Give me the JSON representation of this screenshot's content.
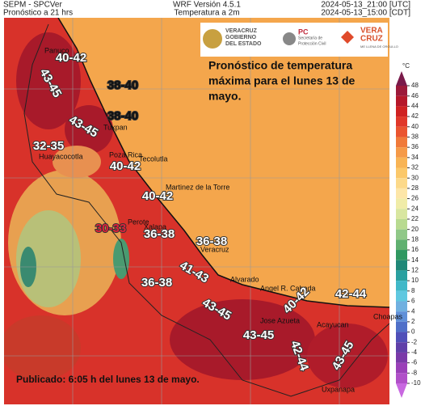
{
  "header": {
    "left_lines": [
      "SEPM - SPCVer",
      "Pronóstico a 21 hrs"
    ],
    "center_lines": [
      "WRF Versión 4.5.1",
      "Temperatura a 2m"
    ],
    "right_lines": [
      "2024-05-13_21:00 [UTC]",
      "2024-05-13_15:00 [CDT]"
    ]
  },
  "logos": {
    "veracruz": [
      "VERACRUZ",
      "GOBIERNO",
      "DEL ESTADO"
    ],
    "pc": [
      "PC",
      "Secretaría de",
      "Protección Civil"
    ],
    "brand": [
      "VERA",
      "CRUZ",
      "ME LLENA DE ORGULLO"
    ]
  },
  "title_lines": [
    "Pronóstico de temperatura",
    "máxima para el lunes 13 de",
    "mayo."
  ],
  "footer": "Publicado: 6:05 h del lunes 13 de mayo.",
  "colorbar": {
    "unit": "°C",
    "ticks": [
      48,
      46,
      44,
      42,
      40,
      38,
      36,
      34,
      32,
      30,
      28,
      26,
      24,
      22,
      20,
      18,
      16,
      14,
      12,
      10,
      8,
      6,
      4,
      2,
      0,
      -2,
      -4,
      -6,
      -8,
      -10
    ],
    "colors": [
      "#9c1a3a",
      "#b5182a",
      "#cf2222",
      "#e0382a",
      "#ea5530",
      "#f07a3a",
      "#f59a48",
      "#f8b455",
      "#fbc86a",
      "#fcd98a",
      "#fde6a8",
      "#f0eca8",
      "#d8e6a0",
      "#b8da90",
      "#90c888",
      "#60b070",
      "#309860",
      "#208878",
      "#2aa0a0",
      "#40b8c8",
      "#60c8e0",
      "#70b0e0",
      "#6090d8",
      "#5070c8",
      "#5050b8",
      "#6040a8",
      "#7a3aa8",
      "#9a40b8",
      "#b050c8"
    ]
  },
  "places": [
    "Panuco",
    "Tuxpan",
    "Poza Rica",
    "Tecolutla",
    "Martinez de la Torre",
    "Perote",
    "Xalapa",
    "Veracruz",
    "Alvarado",
    "Angel R. Cabada",
    "Jose Azueta",
    "Acayucan",
    "Choapas",
    "Uxpanapa",
    "Huayacocotla"
  ],
  "range_labels": [
    "40-42",
    "43-45",
    "38-40",
    "38-40",
    "43-45",
    "32-35",
    "40-42",
    "40-42",
    "30-33",
    "36-38",
    "36-38",
    "41-43",
    "36-38",
    "43-45",
    "40-42",
    "42-44",
    "43-45",
    "42-44",
    "43-45"
  ]
}
